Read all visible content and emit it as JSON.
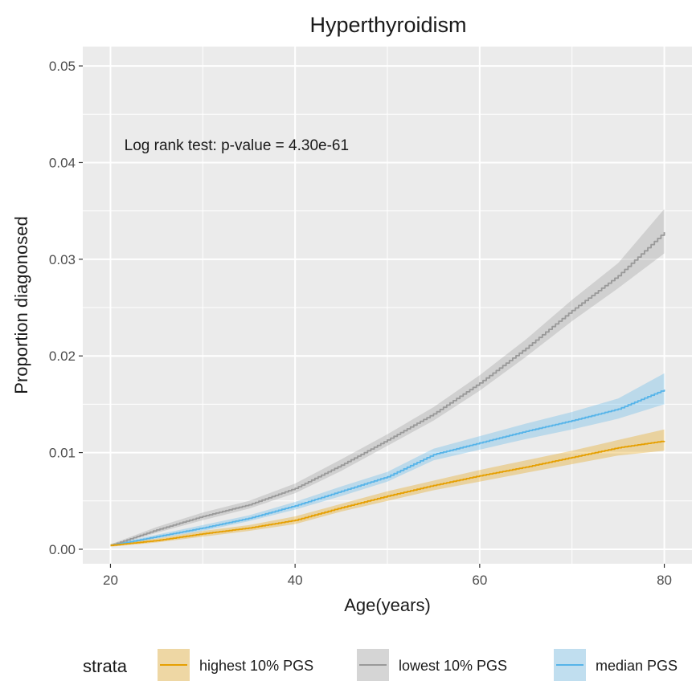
{
  "chart_data": {
    "type": "line",
    "title": "Hyperthyroidism",
    "xlabel": "Age(years)",
    "ylabel": "Proportion diagonosed",
    "xlim": [
      17,
      83
    ],
    "ylim": [
      -0.0015,
      0.052
    ],
    "x_ticks": [
      20,
      40,
      60,
      80
    ],
    "x_tick_labels": [
      "20",
      "40",
      "60",
      "80"
    ],
    "x_minor_ticks": [
      30,
      50,
      70
    ],
    "y_ticks": [
      0,
      0.01,
      0.02,
      0.03,
      0.04,
      0.05
    ],
    "y_tick_labels": [
      "0.00",
      "0.01",
      "0.02",
      "0.03",
      "0.04",
      "0.05"
    ],
    "y_minor_ticks": [
      0.005,
      0.015,
      0.025,
      0.035,
      0.045
    ],
    "grid": true,
    "annotation": {
      "text": "Log rank test: p-value = 4.30e-61",
      "x": 21.5,
      "y": 0.0413
    },
    "legend": {
      "title": "strata",
      "position": "bottom"
    },
    "series": [
      {
        "name": "highest 10% PGS",
        "color": "#E69F00",
        "x": [
          20,
          25,
          30,
          35,
          40,
          45,
          50,
          55,
          60,
          65,
          70,
          75,
          80
        ],
        "y": [
          0.0004,
          0.0009,
          0.0016,
          0.0022,
          0.003,
          0.0043,
          0.0055,
          0.0066,
          0.0076,
          0.0085,
          0.0095,
          0.0105,
          0.0112
        ],
        "lower": [
          0.00025,
          0.0007,
          0.0013,
          0.0019,
          0.0026,
          0.0039,
          0.005,
          0.0061,
          0.007,
          0.0079,
          0.0088,
          0.0097,
          0.0102
        ],
        "upper": [
          0.00055,
          0.0011,
          0.0019,
          0.0025,
          0.0034,
          0.0047,
          0.006,
          0.0071,
          0.0082,
          0.0092,
          0.0102,
          0.0113,
          0.0124
        ]
      },
      {
        "name": "lowest 10% PGS",
        "color": "#999999",
        "x": [
          20,
          25,
          30,
          35,
          40,
          45,
          50,
          55,
          60,
          65,
          70,
          75,
          80
        ],
        "y": [
          0.0004,
          0.002,
          0.0034,
          0.0046,
          0.0063,
          0.0087,
          0.0113,
          0.014,
          0.0172,
          0.0208,
          0.0247,
          0.0283,
          0.0328
        ],
        "lower": [
          0.0003,
          0.0017,
          0.003,
          0.0042,
          0.0058,
          0.0081,
          0.0107,
          0.0133,
          0.0164,
          0.0199,
          0.0236,
          0.027,
          0.0306
        ],
        "upper": [
          0.0005,
          0.0023,
          0.0038,
          0.005,
          0.0068,
          0.0093,
          0.0119,
          0.0147,
          0.018,
          0.0217,
          0.0258,
          0.0296,
          0.0352
        ]
      },
      {
        "name": "median PGS",
        "color": "#56B4E9",
        "x": [
          20,
          25,
          30,
          35,
          40,
          45,
          50,
          55,
          60,
          65,
          70,
          75,
          80
        ],
        "y": [
          0.0004,
          0.0013,
          0.0022,
          0.0032,
          0.0045,
          0.006,
          0.0075,
          0.0098,
          0.011,
          0.0122,
          0.0133,
          0.0145,
          0.0165
        ],
        "lower": [
          0.0003,
          0.0011,
          0.0019,
          0.0029,
          0.0041,
          0.0055,
          0.007,
          0.0092,
          0.0103,
          0.0114,
          0.0124,
          0.0135,
          0.015
        ],
        "upper": [
          0.0005,
          0.0015,
          0.0025,
          0.0035,
          0.0049,
          0.0065,
          0.008,
          0.0104,
          0.0117,
          0.013,
          0.0142,
          0.0156,
          0.0182
        ]
      }
    ]
  }
}
